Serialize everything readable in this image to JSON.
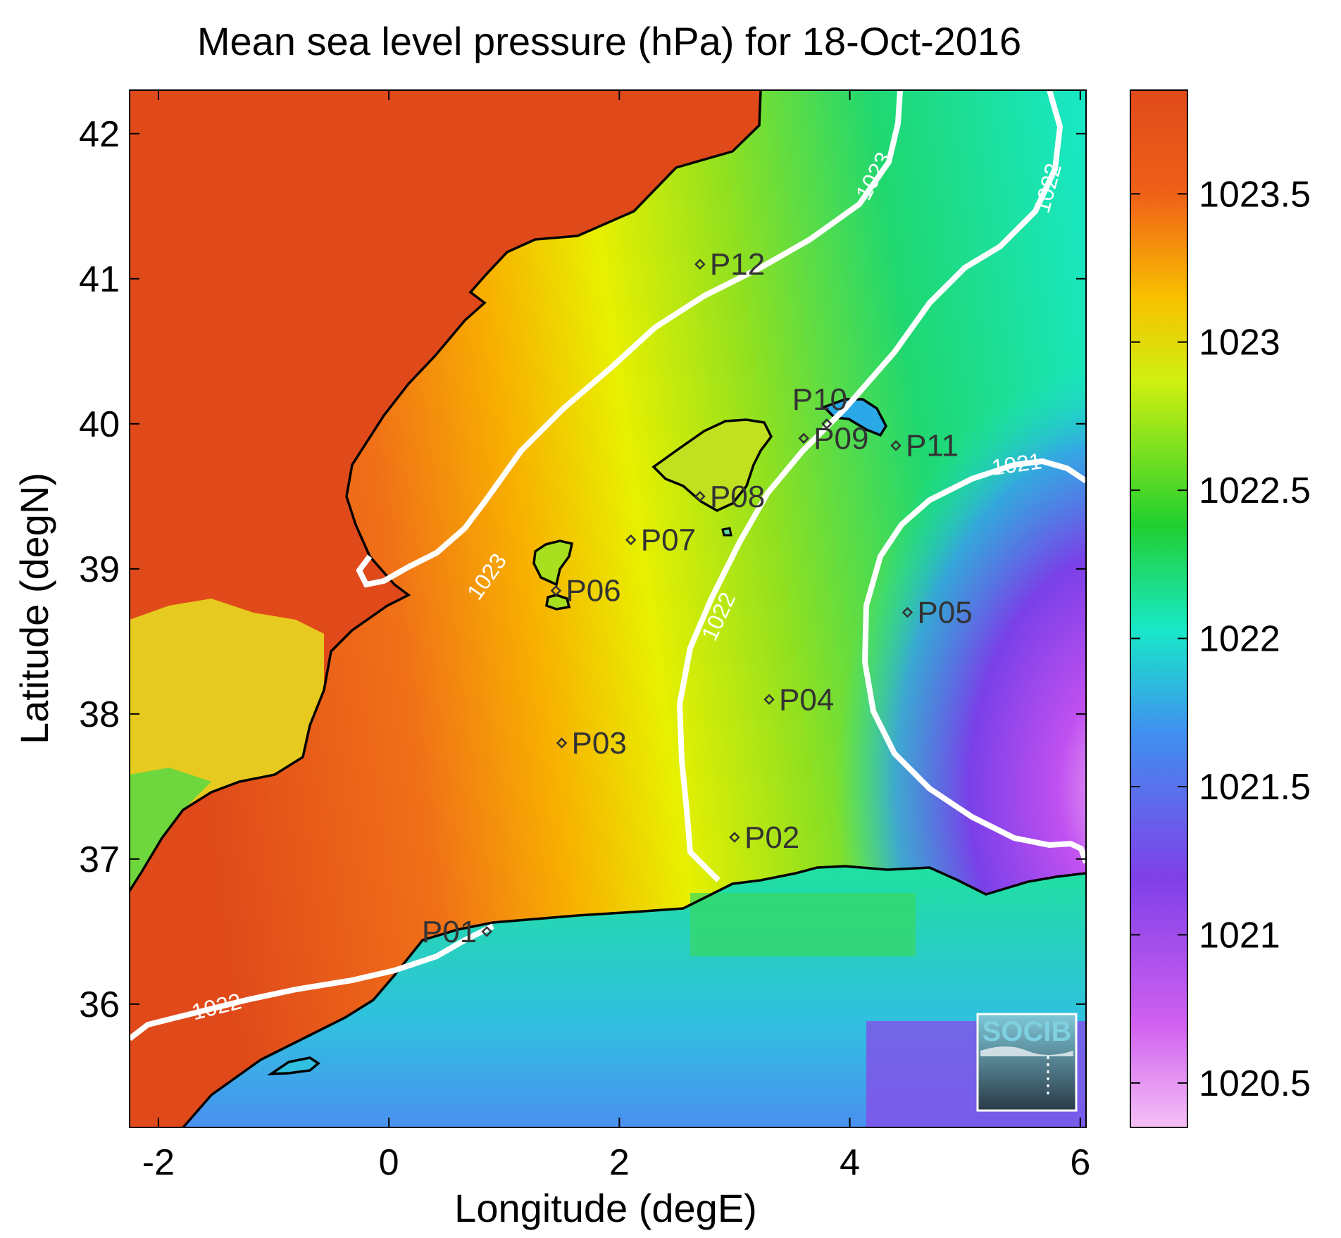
{
  "title": "Mean sea level pressure (hPa) for 18-Oct-2016",
  "xlabel": "Longitude (degE)",
  "ylabel": "Latitude (degN)",
  "xlim": [
    -2.25,
    6.05
  ],
  "ylim": [
    35.15,
    42.3
  ],
  "x_ticks": [
    -2,
    0,
    2,
    4,
    6
  ],
  "y_ticks": [
    36,
    37,
    38,
    39,
    40,
    41,
    42
  ],
  "x_tick_labels": [
    "-2",
    "0",
    "2",
    "4",
    "6"
  ],
  "y_tick_labels": [
    "36",
    "37",
    "38",
    "39",
    "40",
    "41",
    "42"
  ],
  "colorbar": {
    "range": [
      1020.35,
      1023.85
    ],
    "ticks": [
      1020.5,
      1021,
      1021.5,
      1022,
      1022.5,
      1023,
      1023.5
    ],
    "tick_labels": [
      "1020.5",
      "1021",
      "1021.5",
      "1022",
      "1022.5",
      "1023",
      "1023.5"
    ],
    "colors": [
      "#f5c0f5",
      "#c040f0",
      "#7a40e8",
      "#3aaaf0",
      "#18e8c8",
      "#20d030",
      "#e8f000",
      "#f08020",
      "#e04a1a"
    ]
  },
  "points": [
    {
      "name": "P01",
      "lon": 0.85,
      "lat": 36.5
    },
    {
      "name": "P02",
      "lon": 3.0,
      "lat": 37.15
    },
    {
      "name": "P03",
      "lon": 1.5,
      "lat": 37.8
    },
    {
      "name": "P04",
      "lon": 3.3,
      "lat": 38.1
    },
    {
      "name": "P05",
      "lon": 4.5,
      "lat": 38.7
    },
    {
      "name": "P06",
      "lon": 1.45,
      "lat": 38.85
    },
    {
      "name": "P07",
      "lon": 2.1,
      "lat": 39.2
    },
    {
      "name": "P08",
      "lon": 2.7,
      "lat": 39.5
    },
    {
      "name": "P09",
      "lon": 3.6,
      "lat": 39.9
    },
    {
      "name": "P10",
      "lon": 3.8,
      "lat": 40.0
    },
    {
      "name": "P11",
      "lon": 4.4,
      "lat": 39.85
    },
    {
      "name": "P12",
      "lon": 2.7,
      "lat": 41.1
    }
  ],
  "contours": [
    {
      "level": "1023",
      "label": "1023"
    },
    {
      "level": "1022",
      "label": "1022"
    },
    {
      "level": "1021",
      "label": "1021"
    }
  ],
  "logo": "SOCIB"
}
